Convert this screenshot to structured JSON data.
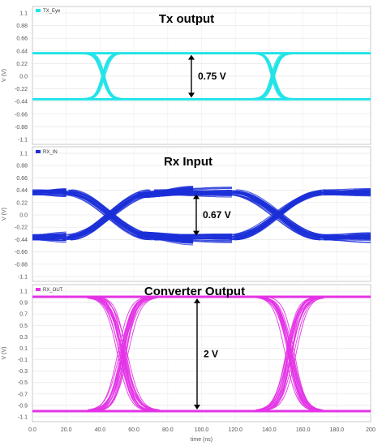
{
  "chart_data": [
    {
      "type": "line",
      "title": "Tx output",
      "legend": "TX_Eye",
      "color": "#22e3e8",
      "ylabel": "V (V)",
      "xlabel": "",
      "ylim": [
        -1.1,
        1.1
      ],
      "yticks": [
        "1.1",
        "0.88",
        "0.66",
        "0.44",
        "0.22",
        "0.0",
        "-0.22",
        "-0.44",
        "-0.66",
        "-0.88",
        "-1.1"
      ],
      "xlim": [
        0,
        200
      ],
      "high": 0.4,
      "low": -0.4,
      "crossings_ns": [
        [
          32,
          52
        ],
        [
          132,
          152
        ]
      ],
      "eye_center_ns": 95,
      "annotation": "0.75 V",
      "annotation_value_v": 0.75
    },
    {
      "type": "line",
      "title": "Rx Input",
      "legend": "RX_IN",
      "color": "#1c2fd8",
      "ylabel": "V (V)",
      "xlabel": "",
      "ylim": [
        -1.1,
        1.1
      ],
      "yticks": [
        "1.1",
        "0.88",
        "0.66",
        "0.44",
        "0.22",
        "0.0",
        "-0.22",
        "-0.44",
        "-0.66",
        "-0.88",
        "-1.1"
      ],
      "xlim": [
        0,
        200
      ],
      "high": 0.4,
      "low": -0.4,
      "crossings_ns": [
        [
          20,
          72
        ],
        [
          118,
          172
        ]
      ],
      "eye_center_ns": 95,
      "annotation": "0.67 V",
      "annotation_value_v": 0.67
    },
    {
      "type": "line",
      "title": "Converter Output",
      "legend": "RX_OUT",
      "color": "#e333e6",
      "ylabel": "V (V)",
      "xlabel": "time (ns)",
      "ylim": [
        -1.1,
        1.1
      ],
      "yticks": [
        "1.1",
        "0.9",
        "0.7",
        "0.5",
        "0.3",
        "0.1",
        "-0.1",
        "-0.3",
        "-0.5",
        "-0.7",
        "-0.9",
        "-1.1"
      ],
      "xlim": [
        0,
        200
      ],
      "xticks": [
        "0.0",
        "20.0",
        "40.0",
        "60.0",
        "80.0",
        "100.0",
        "120.0",
        "140.0",
        "160.0",
        "180.0",
        "200"
      ],
      "high": 1.0,
      "low": -1.0,
      "crossings_ns": [
        [
          36,
          72
        ],
        [
          136,
          170
        ]
      ],
      "eye_center_ns": 100,
      "annotation": "2 V",
      "annotation_value_v": 2.0
    }
  ]
}
